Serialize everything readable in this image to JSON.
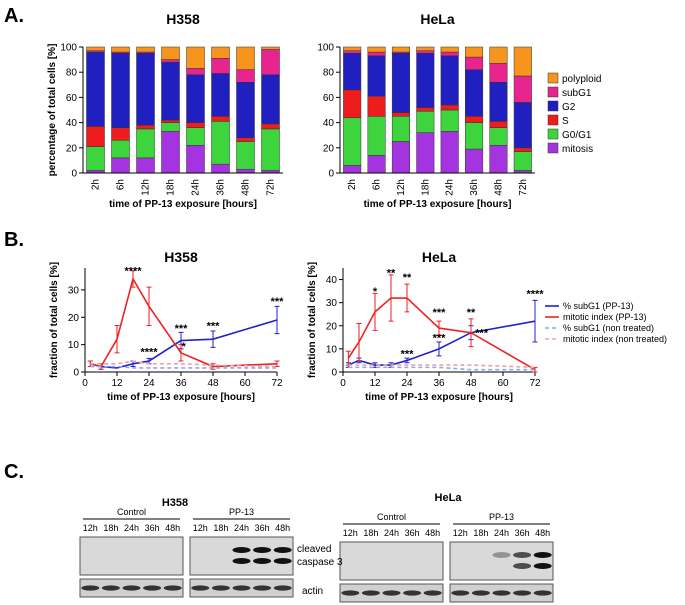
{
  "panels": [
    "A.",
    "B.",
    "C."
  ],
  "chart_data": [
    {
      "type": "stacked_bar",
      "title": "H358",
      "xlabel": "time of PP-13 exposure [hours]",
      "ylabel": "percentage of total cells [%]",
      "categories": [
        "2h",
        "6h",
        "12h",
        "18h",
        "24h",
        "36h",
        "48h",
        "72h"
      ],
      "ylim": [
        0,
        100
      ],
      "yticks": [
        0,
        20,
        40,
        60,
        80,
        100
      ],
      "series": [
        {
          "color": "#a334e0",
          "values": [
            2,
            12,
            12,
            33,
            22,
            7,
            3,
            2
          ]
        },
        {
          "color": "#3dd43d",
          "values": [
            19,
            14,
            23,
            7,
            14,
            34,
            22,
            33
          ]
        },
        {
          "color": "#ee1c1c",
          "values": [
            16,
            10,
            3,
            2,
            4,
            4,
            3,
            4
          ]
        },
        {
          "color": "#2020c0",
          "values": [
            59,
            59,
            57,
            46,
            38,
            34,
            44,
            39
          ]
        },
        {
          "color": "#e8248f",
          "values": [
            1,
            1,
            1,
            2,
            5,
            12,
            10,
            20
          ]
        },
        {
          "color": "#f7941d",
          "values": [
            3,
            4,
            4,
            10,
            17,
            9,
            18,
            2
          ]
        }
      ]
    },
    {
      "type": "stacked_bar",
      "title": "HeLa",
      "xlabel": "time of PP-13 exposure [hours]",
      "legend": "right",
      "categories": [
        "2h",
        "6h",
        "12h",
        "18h",
        "24h",
        "36h",
        "48h",
        "72h"
      ],
      "ylim": [
        0,
        100
      ],
      "yticks": [
        0,
        20,
        40,
        60,
        80,
        100
      ],
      "series": [
        {
          "name": "mitosis",
          "color": "#a334e0",
          "values": [
            6,
            14,
            25,
            32,
            33,
            19,
            22,
            2
          ]
        },
        {
          "name": "G0/G1",
          "color": "#3dd43d",
          "values": [
            38,
            31,
            20,
            17,
            17,
            21,
            14,
            15
          ]
        },
        {
          "name": "S",
          "color": "#ee1c1c",
          "values": [
            22,
            16,
            3,
            3,
            4,
            5,
            5,
            3
          ]
        },
        {
          "name": "G2",
          "color": "#2020c0",
          "values": [
            29,
            32,
            47,
            43,
            39,
            37,
            31,
            36
          ]
        },
        {
          "name": "subG1",
          "color": "#e8248f",
          "values": [
            2,
            3,
            1,
            2,
            3,
            10,
            15,
            21
          ]
        },
        {
          "name": "polyploid",
          "color": "#f7941d",
          "values": [
            3,
            4,
            4,
            3,
            4,
            8,
            13,
            23
          ]
        }
      ]
    },
    {
      "type": "line",
      "title": "H358",
      "xlabel": "time of PP-13 exposure [hours]",
      "ylabel": "fraction of total cells [%]",
      "x": [
        2,
        6,
        12,
        18,
        24,
        36,
        48,
        72
      ],
      "xlim": [
        0,
        72
      ],
      "xticks": [
        0,
        12,
        24,
        36,
        48,
        60,
        72
      ],
      "ylim": [
        0,
        38
      ],
      "yticks": [
        0,
        10,
        20,
        30
      ],
      "series": [
        {
          "color": "#2222cc",
          "style": "solid",
          "values": [
            3,
            2,
            1.5,
            3,
            4,
            11.5,
            12,
            19
          ],
          "errors": [
            1,
            1,
            null,
            1,
            1,
            3,
            3,
            5
          ]
        },
        {
          "color": "#ee2222",
          "style": "solid",
          "values": [
            3,
            2,
            12,
            34,
            24,
            7,
            2,
            3
          ],
          "errors": [
            1,
            1,
            5,
            3,
            7,
            3,
            1,
            1
          ]
        },
        {
          "color": "#88aaee",
          "style": "dashed",
          "values": [
            2,
            2,
            2,
            1.5,
            1.5,
            1.5,
            1.5,
            1.5
          ],
          "errors": [
            null,
            null,
            null,
            null,
            null,
            null,
            null,
            null
          ]
        },
        {
          "color": "#f2a0a0",
          "style": "dashed",
          "values": [
            3,
            3,
            3,
            4,
            3,
            3,
            2.5,
            2
          ],
          "errors": [
            null,
            null,
            null,
            null,
            null,
            null,
            null,
            null
          ]
        }
      ],
      "annotations": [
        {
          "text": "****",
          "x": 18,
          "y": 37
        },
        {
          "text": "****",
          "x": 24,
          "y": 7.5
        },
        {
          "text": "***",
          "x": 36,
          "y": 16
        },
        {
          "text": "*",
          "x": 37,
          "y": 9.5
        },
        {
          "text": "***",
          "x": 48,
          "y": 17
        },
        {
          "text": "***",
          "x": 72,
          "y": 26
        }
      ]
    },
    {
      "type": "line",
      "title": "HeLa",
      "xlabel": "time of PP-13 exposure [hours]",
      "ylabel": "fraction of total cells [%]",
      "legend": "right",
      "x": [
        2,
        6,
        12,
        18,
        24,
        36,
        48,
        72
      ],
      "xlim": [
        0,
        72
      ],
      "xticks": [
        0,
        12,
        24,
        36,
        48,
        60,
        72
      ],
      "ylim": [
        0,
        45
      ],
      "yticks": [
        0,
        10,
        20,
        30,
        40
      ],
      "series": [
        {
          "name": "% subG1 (PP-13)",
          "color": "#2222cc",
          "style": "solid",
          "values": [
            3,
            5,
            3,
            3,
            5,
            10,
            17,
            22
          ],
          "errors": [
            1,
            1,
            1,
            1,
            1,
            3,
            3,
            9
          ]
        },
        {
          "name": "mitotic index (PP-13)",
          "color": "#ee2222",
          "style": "solid",
          "values": [
            6,
            13,
            26,
            32,
            32,
            19,
            17,
            1
          ],
          "errors": [
            3,
            8,
            8,
            10,
            6,
            3,
            6,
            1
          ]
        },
        {
          "name": "% subG1 (non treated)",
          "color": "#88aaee",
          "style": "dashed",
          "values": [
            2,
            2,
            2,
            2,
            2,
            2,
            1,
            1
          ],
          "errors": [
            null,
            null,
            null,
            null,
            null,
            null,
            null,
            null
          ]
        },
        {
          "name": "mitotic index (non treated)",
          "color": "#f2a0a0",
          "style": "dashed",
          "values": [
            3,
            3,
            3,
            3,
            3,
            3,
            3,
            2
          ],
          "errors": [
            null,
            null,
            null,
            null,
            null,
            null,
            null,
            null
          ]
        }
      ],
      "annotations": [
        {
          "text": "*",
          "x": 12,
          "y": 35
        },
        {
          "text": "**",
          "x": 18,
          "y": 43
        },
        {
          "text": "**",
          "x": 24,
          "y": 41
        },
        {
          "text": "***",
          "x": 36,
          "y": 26
        },
        {
          "text": "***",
          "x": 36,
          "y": 15
        },
        {
          "text": "**",
          "x": 48,
          "y": 26
        },
        {
          "text": "***",
          "x": 52,
          "y": 17
        },
        {
          "text": "***",
          "x": 24,
          "y": 8
        },
        {
          "text": "****",
          "x": 72,
          "y": 34
        }
      ]
    }
  ],
  "blots": {
    "marker_labels": [
      "cleaved",
      "caspase 3",
      "actin"
    ],
    "cell_lines": [
      {
        "title": "H358",
        "groups": [
          {
            "label": "Control",
            "times": [
              "12h",
              "18h",
              "24h",
              "36h",
              "48h"
            ]
          },
          {
            "label": "PP-13",
            "times": [
              "12h",
              "18h",
              "24h",
              "36h",
              "48h"
            ]
          }
        ]
      },
      {
        "title": "HeLa",
        "groups": [
          {
            "label": "Control",
            "times": [
              "12h",
              "18h",
              "24h",
              "36h",
              "48h"
            ]
          },
          {
            "label": "PP-13",
            "times": [
              "12h",
              "18h",
              "24h",
              "36h",
              "48h"
            ]
          }
        ]
      }
    ]
  }
}
